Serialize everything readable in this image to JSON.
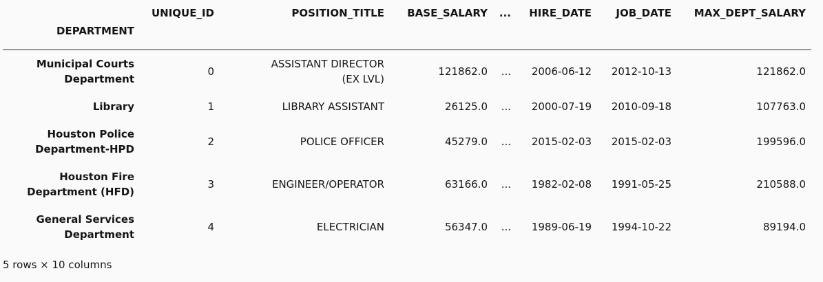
{
  "colors": {
    "background": "#fafafa",
    "text": "#151515",
    "rule": "#262626"
  },
  "table": {
    "index_name": "DEPARTMENT",
    "columns": [
      "UNIQUE_ID",
      "POSITION_TITLE",
      "BASE_SALARY",
      "...",
      "HIRE_DATE",
      "JOB_DATE",
      "MAX_DEPT_SALARY"
    ],
    "rows": [
      {
        "index": "Municipal Courts Department",
        "cells": [
          "0",
          "ASSISTANT DIRECTOR (EX LVL)",
          "121862.0",
          "...",
          "2006-06-12",
          "2012-10-13",
          "121862.0"
        ]
      },
      {
        "index": "Library",
        "cells": [
          "1",
          "LIBRARY ASSISTANT",
          "26125.0",
          "...",
          "2000-07-19",
          "2010-09-18",
          "107763.0"
        ]
      },
      {
        "index": "Houston Police Department-HPD",
        "cells": [
          "2",
          "POLICE OFFICER",
          "45279.0",
          "...",
          "2015-02-03",
          "2015-02-03",
          "199596.0"
        ]
      },
      {
        "index": "Houston Fire Department (HFD)",
        "cells": [
          "3",
          "ENGINEER/OPERATOR",
          "63166.0",
          "...",
          "1982-02-08",
          "1991-05-25",
          "210588.0"
        ]
      },
      {
        "index": "General Services Department",
        "cells": [
          "4",
          "ELECTRICIAN",
          "56347.0",
          "...",
          "1989-06-19",
          "1994-10-22",
          "89194.0"
        ]
      }
    ],
    "footer": "5 rows × 10 columns"
  }
}
